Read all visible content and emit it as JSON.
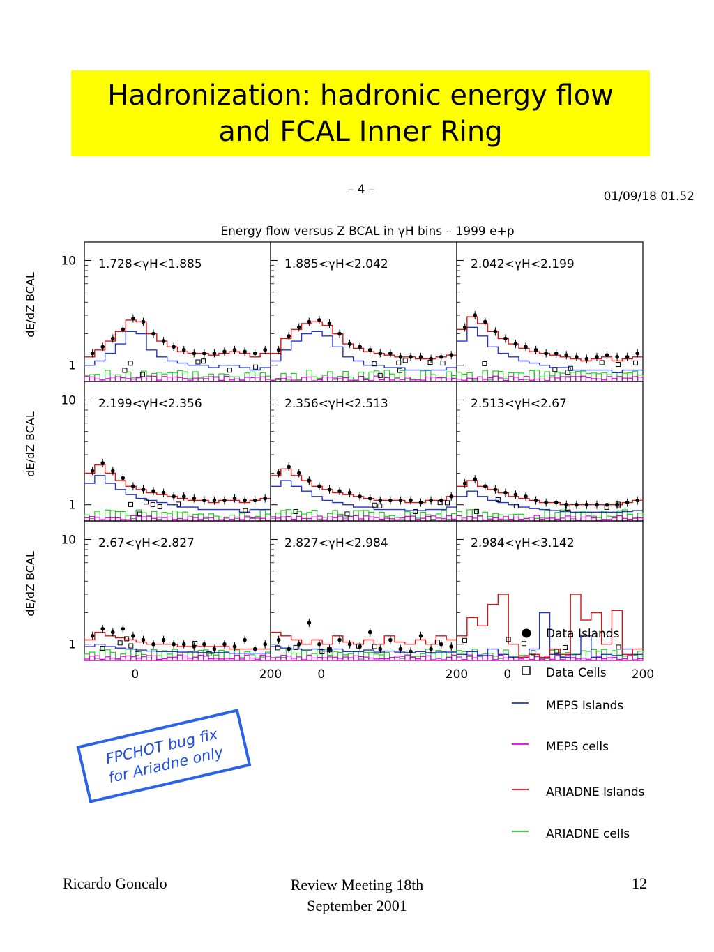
{
  "slide": {
    "title_line1": "Hadronization: hadronic energy flow",
    "title_line2": "and FCAL Inner Ring",
    "note_line1": "FPCHOT bug fix",
    "note_line2": "for Ariadne only",
    "footer_left": "Ricardo Goncalo",
    "footer_center_line1": "Review Meeting 18th",
    "footer_center_line2": "September 2001",
    "footer_right": "12"
  },
  "plot_header": {
    "page_number": "– 4 –",
    "timestamp": "01/09/18   01.52",
    "title": "Energy flow versus Z BCAL in γH bins – 1999 e+p"
  },
  "chart_data": {
    "type": "line",
    "ylabel": "dE/dZ BCAL",
    "yscale": "log",
    "ylim": [
      0.7,
      15
    ],
    "xlim": [
      -75,
      200
    ],
    "x_tick_labels": [
      "0",
      "200"
    ],
    "y_tick_labels": [
      "1",
      "10"
    ],
    "colors": {
      "MEPS Islands": "#2233cc",
      "MEPS cells": "#dd00dd",
      "ARIADNE Islands": "#dd1111",
      "ARIADNE cells": "#22cc22",
      "Data": "#000000"
    },
    "legend": [
      {
        "name": "Data Islands",
        "marker": "dot"
      },
      {
        "name": "Data Cells",
        "marker": "open-square"
      },
      {
        "name": "MEPS Islands",
        "marker": "line",
        "color": "#2233cc"
      },
      {
        "name": "MEPS cells",
        "marker": "line",
        "color": "#dd00dd"
      },
      {
        "name": "ARIADNE Islands",
        "marker": "line",
        "color": "#dd1111"
      },
      {
        "name": "ARIADNE cells",
        "marker": "line",
        "color": "#22cc22"
      }
    ],
    "panels": [
      {
        "label": "1.728<γH<1.885",
        "x": [
          -70,
          -55,
          -40,
          -25,
          -10,
          5,
          20,
          35,
          50,
          65,
          80,
          95,
          110,
          125,
          140,
          155,
          170,
          185
        ],
        "ariadne_islands": [
          1.2,
          1.4,
          1.7,
          2.1,
          2.7,
          2.6,
          2.0,
          1.7,
          1.5,
          1.35,
          1.3,
          1.3,
          1.25,
          1.3,
          1.35,
          1.3,
          1.2,
          1.3
        ],
        "meps_islands": [
          1.0,
          1.1,
          1.3,
          1.6,
          2.1,
          2.0,
          1.4,
          1.2,
          1.1,
          1.05,
          1.0,
          1.0,
          0.95,
          1.0,
          1.0,
          0.95,
          0.9,
          0.95
        ],
        "data_islands": [
          1.3,
          1.5,
          1.8,
          2.2,
          2.8,
          2.6,
          2.0,
          1.7,
          1.5,
          1.4,
          1.3,
          1.3,
          1.3,
          1.35,
          1.4,
          1.35,
          1.3,
          1.4
        ]
      },
      {
        "label": "1.885<γH<2.042",
        "x": [
          -70,
          -55,
          -40,
          -25,
          -10,
          5,
          20,
          35,
          50,
          65,
          80,
          95,
          110,
          125,
          140,
          155,
          170,
          185
        ],
        "ariadne_islands": [
          1.3,
          1.8,
          2.2,
          2.5,
          2.6,
          2.4,
          2.0,
          1.6,
          1.45,
          1.35,
          1.3,
          1.25,
          1.2,
          1.2,
          1.15,
          1.15,
          1.2,
          1.25
        ],
        "meps_islands": [
          1.1,
          1.4,
          1.7,
          2.0,
          2.1,
          1.9,
          1.5,
          1.2,
          1.1,
          1.0,
          1.0,
          0.95,
          0.95,
          0.9,
          0.9,
          0.9,
          0.9,
          0.95
        ],
        "data_islands": [
          1.4,
          1.9,
          2.3,
          2.6,
          2.7,
          2.5,
          2.0,
          1.6,
          1.5,
          1.4,
          1.3,
          1.3,
          1.2,
          1.2,
          1.2,
          1.15,
          1.2,
          1.25
        ]
      },
      {
        "label": "2.042<γH<2.199",
        "x": [
          -70,
          -55,
          -40,
          -25,
          -10,
          5,
          20,
          35,
          50,
          65,
          80,
          95,
          110,
          125,
          140,
          155,
          170,
          185
        ],
        "ariadne_islands": [
          2.2,
          2.9,
          2.5,
          2.1,
          1.8,
          1.6,
          1.45,
          1.35,
          1.3,
          1.25,
          1.2,
          1.15,
          1.1,
          1.15,
          1.2,
          1.1,
          1.15,
          1.2
        ],
        "meps_islands": [
          1.7,
          2.3,
          1.9,
          1.5,
          1.3,
          1.2,
          1.1,
          1.05,
          1.0,
          0.95,
          0.95,
          0.9,
          0.9,
          0.9,
          0.9,
          0.85,
          0.9,
          0.9
        ],
        "data_islands": [
          2.3,
          3.0,
          2.6,
          2.1,
          1.8,
          1.6,
          1.5,
          1.4,
          1.3,
          1.3,
          1.25,
          1.2,
          1.15,
          1.2,
          1.25,
          1.2,
          1.2,
          1.3
        ]
      },
      {
        "label": "2.199<γH<2.356",
        "x": [
          -70,
          -55,
          -40,
          -25,
          -10,
          5,
          20,
          35,
          50,
          65,
          80,
          95,
          110,
          125,
          140,
          155,
          170,
          185
        ],
        "ariadne_islands": [
          2.0,
          2.4,
          2.0,
          1.7,
          1.5,
          1.4,
          1.3,
          1.25,
          1.2,
          1.15,
          1.1,
          1.1,
          1.05,
          1.1,
          1.1,
          1.05,
          1.1,
          1.15
        ],
        "meps_islands": [
          1.6,
          1.9,
          1.6,
          1.4,
          1.25,
          1.15,
          1.1,
          1.05,
          1.0,
          0.95,
          0.95,
          0.9,
          0.9,
          0.9,
          0.9,
          0.85,
          0.9,
          0.9
        ],
        "data_islands": [
          2.1,
          2.5,
          2.1,
          1.8,
          1.5,
          1.4,
          1.35,
          1.3,
          1.2,
          1.2,
          1.15,
          1.1,
          1.1,
          1.1,
          1.15,
          1.1,
          1.1,
          1.15
        ]
      },
      {
        "label": "2.356<γH<2.513",
        "x": [
          -70,
          -55,
          -40,
          -25,
          -10,
          5,
          20,
          35,
          50,
          65,
          80,
          95,
          110,
          125,
          140,
          155,
          170,
          185
        ],
        "ariadne_islands": [
          1.9,
          2.2,
          1.9,
          1.7,
          1.5,
          1.4,
          1.3,
          1.25,
          1.2,
          1.15,
          1.1,
          1.1,
          1.1,
          1.05,
          1.05,
          1.1,
          1.1,
          1.2
        ],
        "meps_islands": [
          1.5,
          1.7,
          1.5,
          1.35,
          1.2,
          1.1,
          1.05,
          1.0,
          0.95,
          0.95,
          0.9,
          0.9,
          0.9,
          0.88,
          0.88,
          0.9,
          0.9,
          0.95
        ],
        "data_islands": [
          2.0,
          2.3,
          2.0,
          1.7,
          1.5,
          1.4,
          1.35,
          1.3,
          1.2,
          1.15,
          1.1,
          1.1,
          1.1,
          1.1,
          1.05,
          1.1,
          1.1,
          1.2
        ]
      },
      {
        "label": "2.513<γH<2.67",
        "x": [
          -70,
          -55,
          -40,
          -25,
          -10,
          5,
          20,
          35,
          50,
          65,
          80,
          95,
          110,
          125,
          140,
          155,
          170,
          185
        ],
        "ariadne_islands": [
          1.5,
          1.7,
          1.5,
          1.4,
          1.3,
          1.2,
          1.15,
          1.1,
          1.05,
          1.05,
          1.0,
          1.0,
          1.0,
          1.0,
          1.0,
          1.0,
          1.05,
          1.1
        ],
        "meps_islands": [
          1.2,
          1.35,
          1.2,
          1.1,
          1.05,
          1.0,
          0.95,
          0.92,
          0.9,
          0.88,
          0.86,
          0.85,
          0.85,
          0.85,
          0.85,
          0.85,
          0.86,
          0.88
        ],
        "data_islands": [
          1.6,
          1.75,
          1.5,
          1.4,
          1.3,
          1.25,
          1.2,
          1.1,
          1.05,
          1.05,
          1.0,
          1.0,
          1.0,
          1.0,
          1.0,
          1.0,
          1.05,
          1.1
        ]
      },
      {
        "label": "2.67<γH<2.827",
        "x": [
          -70,
          -55,
          -40,
          -25,
          -10,
          5,
          20,
          35,
          50,
          65,
          80,
          95,
          110,
          125,
          140,
          155,
          170,
          185
        ],
        "ariadne_islands": [
          1.1,
          1.3,
          1.2,
          1.15,
          1.1,
          1.05,
          1.0,
          1.0,
          1.0,
          0.95,
          0.95,
          0.95,
          0.95,
          0.95,
          0.9,
          0.9,
          0.9,
          0.9
        ],
        "meps_islands": [
          0.95,
          1.0,
          0.95,
          0.92,
          0.9,
          0.88,
          0.86,
          0.85,
          0.85,
          0.84,
          0.84,
          0.83,
          0.83,
          0.83,
          0.82,
          0.82,
          0.82,
          0.82
        ],
        "data_islands": [
          1.2,
          1.4,
          1.3,
          1.4,
          1.2,
          1.1,
          1.0,
          1.1,
          1.0,
          1.0,
          0.95,
          1.0,
          0.9,
          1.0,
          0.95,
          1.1,
          0.9,
          1.0
        ]
      },
      {
        "label": "2.827<γH<2.984",
        "x": [
          -70,
          -55,
          -40,
          -25,
          -10,
          5,
          20,
          35,
          50,
          65,
          80,
          95,
          110,
          125,
          140,
          155,
          170,
          185
        ],
        "ariadne_islands": [
          1.3,
          1.2,
          1.1,
          1.0,
          1.1,
          1.0,
          1.2,
          1.05,
          1.0,
          1.1,
          1.0,
          1.2,
          1.05,
          1.0,
          1.1,
          1.0,
          1.2,
          1.1
        ],
        "meps_islands": [
          0.95,
          0.92,
          0.9,
          0.88,
          0.9,
          0.86,
          0.9,
          0.85,
          0.85,
          0.88,
          0.84,
          0.86,
          0.84,
          0.83,
          0.85,
          0.83,
          0.84,
          0.84
        ],
        "data_islands": [
          1.1,
          0.9,
          1.0,
          1.6,
          1.0,
          0.9,
          1.1,
          1.0,
          0.95,
          1.3,
          0.9,
          1.1,
          0.9,
          0.85,
          1.2,
          0.9,
          1.0,
          0.95
        ]
      },
      {
        "label": "2.984<γH<3.142",
        "x": [
          -70,
          -55,
          -40,
          -25,
          -10,
          5,
          20,
          35,
          50,
          65,
          80,
          95,
          110,
          125,
          140,
          155,
          170,
          185
        ],
        "ariadne_islands": [
          1.2,
          1.8,
          1.5,
          2.4,
          3.0,
          1.0,
          0.75,
          0.8,
          0.75,
          0.9,
          0.8,
          3.0,
          1.7,
          2.0,
          1.0,
          2.1,
          0.8,
          0.9
        ],
        "meps_islands": [
          0.8,
          0.85,
          0.78,
          0.9,
          0.8,
          0.75,
          0.75,
          0.9,
          2.0,
          0.8,
          0.75,
          0.8,
          1.2,
          0.75,
          0.8,
          0.78,
          0.9,
          0.8
        ],
        "data_islands": []
      }
    ]
  }
}
